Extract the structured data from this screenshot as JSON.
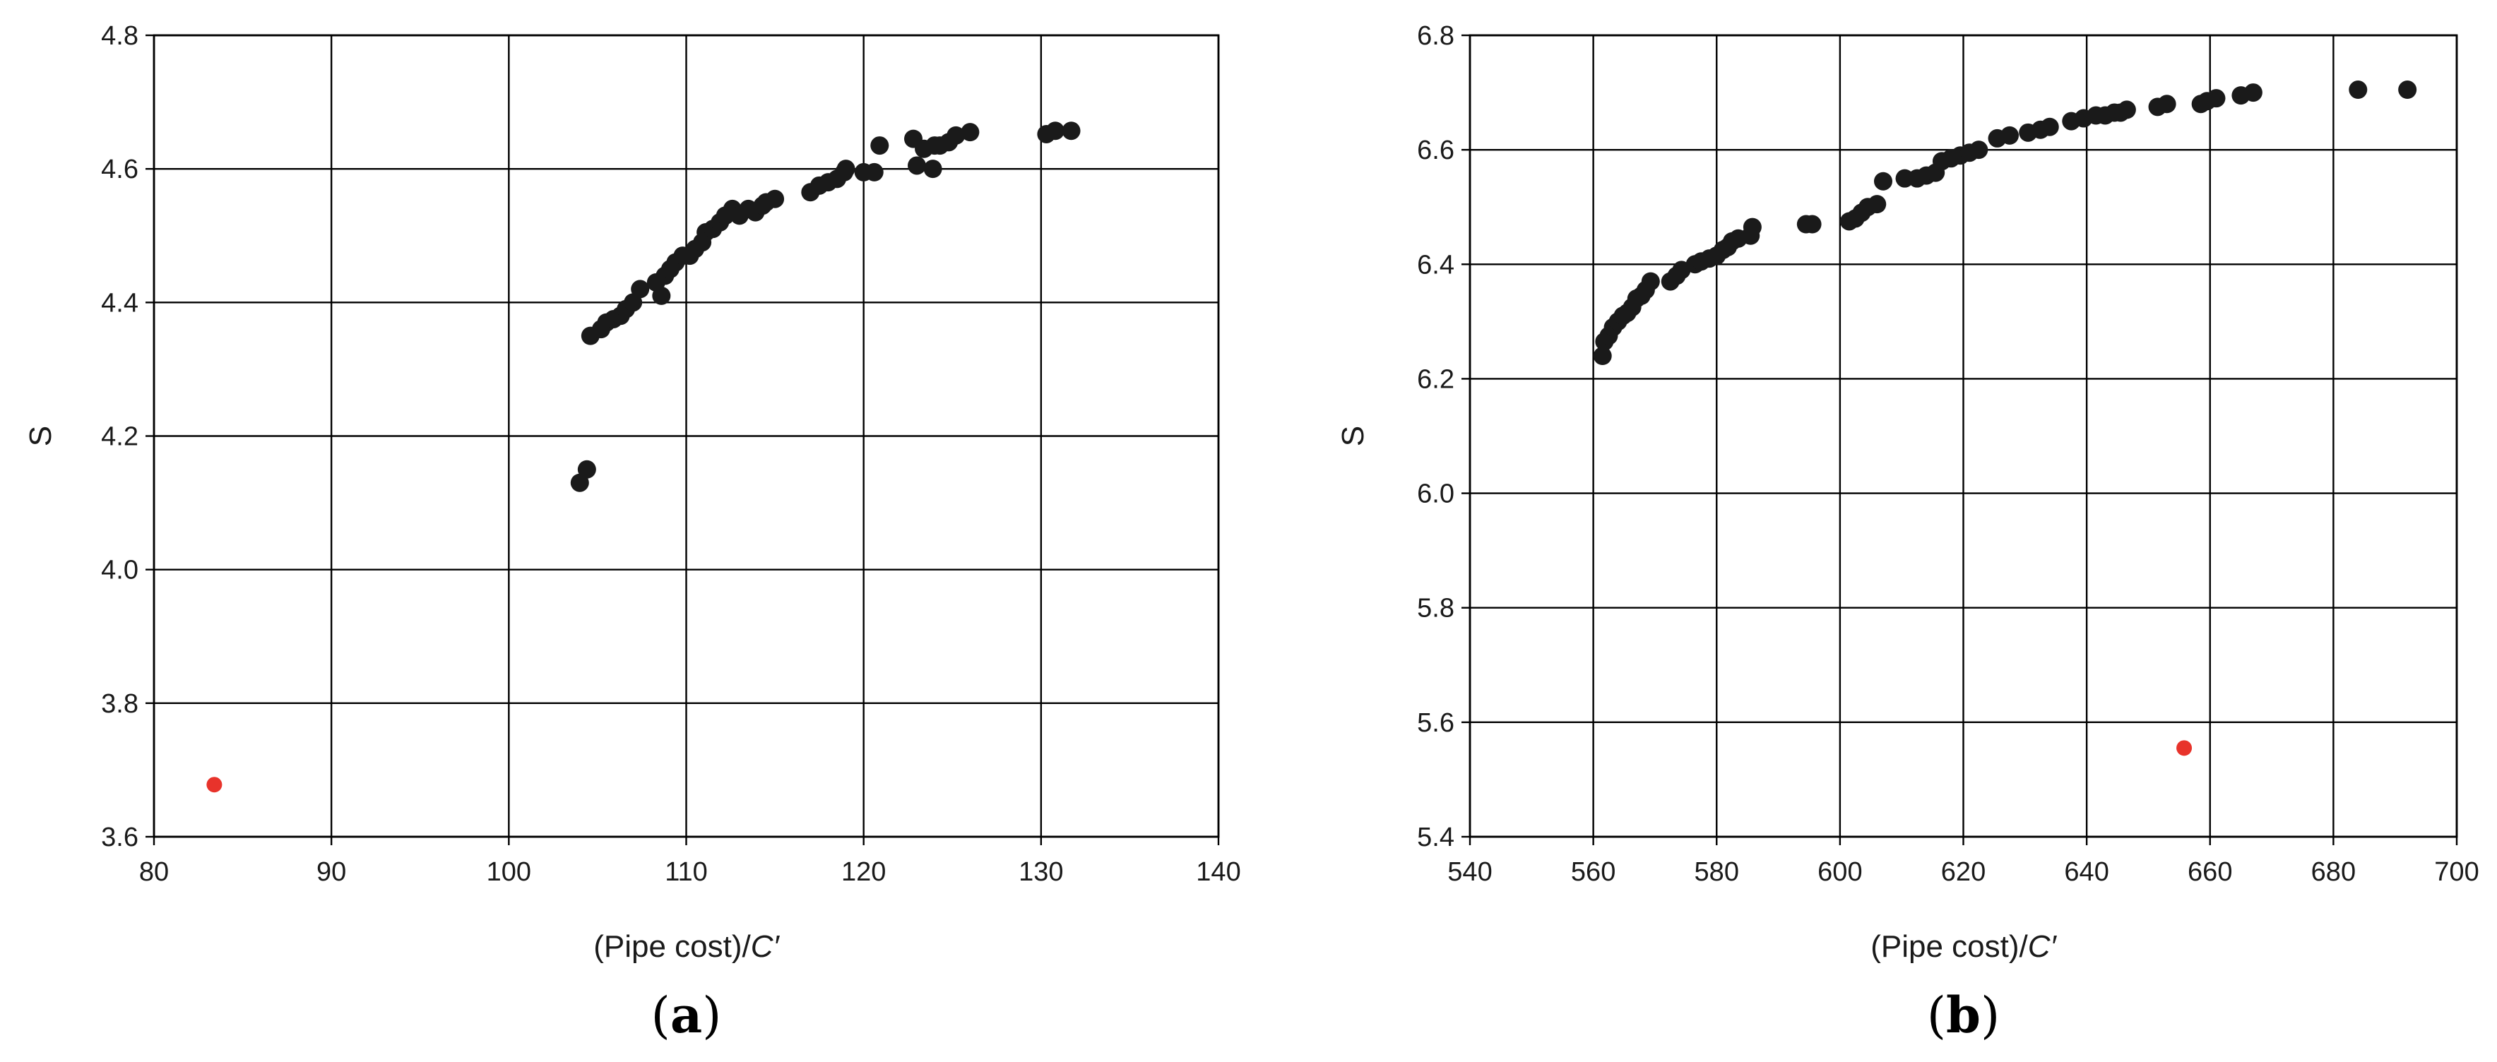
{
  "chart_data": [
    {
      "type": "scatter",
      "panel_label": "a",
      "xlabel": "(Pipe cost)/",
      "xlabel_symbol": "C′",
      "ylabel": "S",
      "xlim": [
        80,
        140
      ],
      "ylim": [
        3.6,
        4.8
      ],
      "x_ticks": [
        "80",
        "90",
        "100",
        "110",
        "120",
        "130",
        "140"
      ],
      "y_ticks": [
        "3.6",
        "3.8",
        "4.0",
        "4.2",
        "4.4",
        "4.6",
        "4.8"
      ],
      "grid": true,
      "series": [
        {
          "color": "#1a1a1a",
          "points": [
            [
              104.0,
              4.13
            ],
            [
              104.4,
              4.15
            ],
            [
              104.6,
              4.35
            ],
            [
              105.2,
              4.36
            ],
            [
              105.5,
              4.37
            ],
            [
              105.9,
              4.375
            ],
            [
              106.3,
              4.38
            ],
            [
              106.6,
              4.39
            ],
            [
              107.0,
              4.4
            ],
            [
              107.4,
              4.42
            ],
            [
              108.3,
              4.43
            ],
            [
              108.6,
              4.41
            ],
            [
              108.8,
              4.44
            ],
            [
              109.1,
              4.45
            ],
            [
              109.4,
              4.46
            ],
            [
              109.8,
              4.47
            ],
            [
              110.2,
              4.47
            ],
            [
              110.5,
              4.48
            ],
            [
              110.9,
              4.49
            ],
            [
              111.1,
              4.505
            ],
            [
              111.5,
              4.51
            ],
            [
              111.9,
              4.52
            ],
            [
              112.2,
              4.53
            ],
            [
              112.6,
              4.54
            ],
            [
              113.0,
              4.53
            ],
            [
              113.5,
              4.54
            ],
            [
              113.9,
              4.535
            ],
            [
              114.3,
              4.545
            ],
            [
              114.5,
              4.55
            ],
            [
              115.0,
              4.555
            ],
            [
              117.0,
              4.565
            ],
            [
              117.5,
              4.575
            ],
            [
              118.0,
              4.58
            ],
            [
              118.5,
              4.585
            ],
            [
              118.9,
              4.595
            ],
            [
              119.0,
              4.6
            ],
            [
              120.0,
              4.595
            ],
            [
              120.6,
              4.595
            ],
            [
              120.9,
              4.635
            ],
            [
              122.8,
              4.645
            ],
            [
              123.0,
              4.605
            ],
            [
              123.4,
              4.63
            ],
            [
              123.9,
              4.6
            ],
            [
              124.0,
              4.635
            ],
            [
              124.3,
              4.635
            ],
            [
              124.8,
              4.64
            ],
            [
              125.2,
              4.65
            ],
            [
              126.0,
              4.655
            ],
            [
              130.3,
              4.652
            ],
            [
              130.8,
              4.657
            ],
            [
              131.7,
              4.657
            ]
          ]
        },
        {
          "color": "#e8332b",
          "points": [
            [
              83.4,
              3.678
            ]
          ]
        }
      ]
    },
    {
      "type": "scatter",
      "panel_label": "b",
      "xlabel": "(Pipe cost)/",
      "xlabel_symbol": "C′",
      "ylabel": "S",
      "xlim": [
        540,
        700
      ],
      "ylim": [
        5.4,
        6.8
      ],
      "x_ticks": [
        "540",
        "560",
        "580",
        "600",
        "620",
        "640",
        "660",
        "680",
        "700"
      ],
      "y_ticks": [
        "5.4",
        "5.6",
        "5.8",
        "6.0",
        "6.2",
        "6.4",
        "6.6",
        "6.8"
      ],
      "grid": true,
      "series": [
        {
          "color": "#1a1a1a",
          "points": [
            [
              561.5,
              6.24
            ],
            [
              561.8,
              6.265
            ],
            [
              562.5,
              6.275
            ],
            [
              563.2,
              6.29
            ],
            [
              564.0,
              6.3
            ],
            [
              564.8,
              6.31
            ],
            [
              565.5,
              6.315
            ],
            [
              566.3,
              6.325
            ],
            [
              567.0,
              6.34
            ],
            [
              567.8,
              6.345
            ],
            [
              568.5,
              6.355
            ],
            [
              569.3,
              6.37
            ],
            [
              572.5,
              6.37
            ],
            [
              573.5,
              6.38
            ],
            [
              574.3,
              6.39
            ],
            [
              576.5,
              6.4
            ],
            [
              577.5,
              6.405
            ],
            [
              578.8,
              6.41
            ],
            [
              580.0,
              6.415
            ],
            [
              581.0,
              6.425
            ],
            [
              581.8,
              6.43
            ],
            [
              582.5,
              6.44
            ],
            [
              583.5,
              6.445
            ],
            [
              585.5,
              6.45
            ],
            [
              585.8,
              6.465
            ],
            [
              594.5,
              6.47
            ],
            [
              595.5,
              6.47
            ],
            [
              601.5,
              6.475
            ],
            [
              602.5,
              6.48
            ],
            [
              603.5,
              6.49
            ],
            [
              604.5,
              6.5
            ],
            [
              606.0,
              6.505
            ],
            [
              607.0,
              6.545
            ],
            [
              610.5,
              6.55
            ],
            [
              612.5,
              6.55
            ],
            [
              614.0,
              6.555
            ],
            [
              615.5,
              6.56
            ],
            [
              616.5,
              6.58
            ],
            [
              618.0,
              6.585
            ],
            [
              619.5,
              6.59
            ],
            [
              621.0,
              6.595
            ],
            [
              622.5,
              6.6
            ],
            [
              625.5,
              6.62
            ],
            [
              627.5,
              6.625
            ],
            [
              630.5,
              6.63
            ],
            [
              632.5,
              6.635
            ],
            [
              634.0,
              6.64
            ],
            [
              637.5,
              6.65
            ],
            [
              639.5,
              6.655
            ],
            [
              641.5,
              6.66
            ],
            [
              643.0,
              6.66
            ],
            [
              644.5,
              6.665
            ],
            [
              645.5,
              6.665
            ],
            [
              646.5,
              6.67
            ],
            [
              651.5,
              6.675
            ],
            [
              653.0,
              6.68
            ],
            [
              658.5,
              6.68
            ],
            [
              659.5,
              6.685
            ],
            [
              661.0,
              6.69
            ],
            [
              665.0,
              6.695
            ],
            [
              667.0,
              6.7
            ],
            [
              684.0,
              6.705
            ],
            [
              692.0,
              6.705
            ]
          ]
        },
        {
          "color": "#e8332b",
          "points": [
            [
              655.8,
              5.555
            ]
          ]
        }
      ]
    }
  ]
}
